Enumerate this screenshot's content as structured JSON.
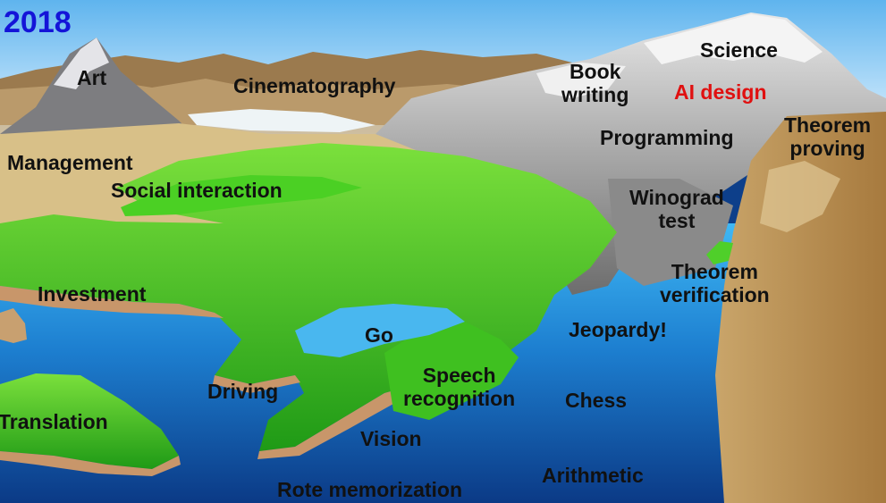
{
  "year": "2018",
  "colors": {
    "year_text": "#1414d8",
    "highlight_text": "#e01010",
    "label_text": "#111111",
    "sky": "#bfe3ff",
    "water_shallow": "#3fb8f5",
    "water_deep": "#0b3a86",
    "land_green": "#3cc21e",
    "mountain_grey": "#a6a6a6"
  },
  "labels": {
    "art": "Art",
    "cinematography": "Cinematography",
    "book_writing": "Book\nwriting",
    "science": "Science",
    "ai_design": "AI design",
    "theorem_proving": "Theorem\nproving",
    "programming": "Programming",
    "management": "Management",
    "social_interaction": "Social interaction",
    "winograd_test": "Winograd\ntest",
    "theorem_verification": "Theorem\nverification",
    "investment": "Investment",
    "go": "Go",
    "jeopardy": "Jeopardy!",
    "driving": "Driving",
    "speech_recognition": "Speech\nrecognition",
    "chess": "Chess",
    "translation": "Translation",
    "vision": "Vision",
    "arithmetic": "Arithmetic",
    "rote_memorization": "Rote memorization"
  }
}
